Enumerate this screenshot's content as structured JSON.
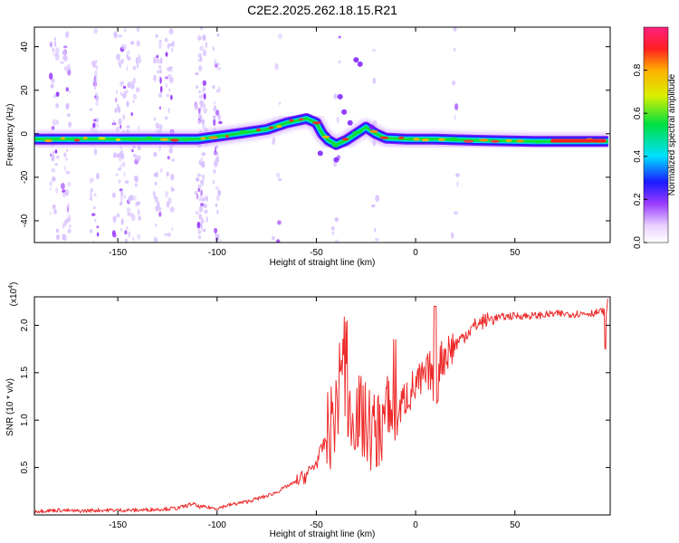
{
  "title": "C2E2.2025.262.18.15.R21",
  "colors": {
    "snr_line": "#ee2a2a",
    "background": "#ffffff",
    "axis": "#000000"
  },
  "chart_data": [
    {
      "type": "heatmap",
      "name": "spectrogram",
      "xlabel": "Height of straight line (km)",
      "ylabel": "Frequency (Hz)",
      "xlim": [
        -192,
        98
      ],
      "ylim": [
        -50,
        49
      ],
      "xticks": [
        -150,
        -100,
        -50,
        0,
        50
      ],
      "xtick_labels": [
        "-150",
        "-100",
        "-50",
        "0",
        "50"
      ],
      "yticks": [
        -40,
        -20,
        0,
        20,
        40
      ],
      "ytick_labels": [
        "-40",
        "-20",
        "0",
        "20",
        "40"
      ],
      "ridge": {
        "x": [
          -192,
          -150,
          -110,
          -90,
          -75,
          -65,
          -55,
          -50,
          -47,
          -44,
          -40,
          -35,
          -30,
          -25,
          -20,
          -15,
          -5,
          10,
          30,
          60,
          97
        ],
        "y": [
          -2.5,
          -2.5,
          -2.5,
          0,
          2,
          5,
          7,
          5,
          0,
          -3,
          -5,
          -3,
          0,
          3,
          0,
          -2,
          -2.5,
          -2.5,
          -3,
          -3.5,
          -3.5
        ]
      },
      "colorbar": {
        "label": "Normalized spectral amplitude",
        "range": [
          0,
          1
        ],
        "ticks": [
          0.0,
          0.2,
          0.4,
          0.6,
          0.8
        ],
        "tick_labels": [
          "0.0",
          "0.2",
          "0.4",
          "0.6",
          "0.8"
        ]
      }
    },
    {
      "type": "line",
      "name": "snr",
      "xlabel": "Height of straight line (km)",
      "ylabel": "SNR (10 * v/v)",
      "y_scale_label": "(x10",
      "y_scale_exp": "4",
      "y_scale_close": ")",
      "xlim": [
        -192,
        98
      ],
      "ylim": [
        0,
        2.3
      ],
      "xticks": [
        -150,
        -100,
        -50,
        0,
        50
      ],
      "xtick_labels": [
        "-150",
        "-100",
        "-50",
        "0",
        "50"
      ],
      "yticks": [
        0.5,
        1.0,
        1.5,
        2.0
      ],
      "ytick_labels": [
        "0.5",
        "1.0",
        "1.5",
        "2.0"
      ],
      "series": [
        {
          "name": "SNR",
          "x": [
            -192,
            -180,
            -170,
            -160,
            -150,
            -140,
            -130,
            -120,
            -115,
            -112,
            -110,
            -100,
            -95,
            -90,
            -85,
            -80,
            -75,
            -70,
            -65,
            -60,
            -55,
            -50,
            -45,
            -40,
            -37,
            -35,
            -33,
            -30,
            -25,
            -20,
            -15,
            -10,
            -5,
            0,
            5,
            8,
            10,
            12,
            15,
            20,
            25,
            30,
            35,
            40,
            50,
            60,
            70,
            80,
            90,
            95,
            97
          ],
          "y": [
            0.04,
            0.05,
            0.04,
            0.05,
            0.05,
            0.05,
            0.06,
            0.07,
            0.1,
            0.12,
            0.09,
            0.07,
            0.1,
            0.12,
            0.14,
            0.17,
            0.2,
            0.24,
            0.3,
            0.35,
            0.42,
            0.55,
            0.8,
            1.1,
            1.6,
            1.25,
            1.0,
            1.1,
            0.95,
            0.85,
            1.05,
            1.0,
            1.25,
            1.35,
            1.45,
            1.55,
            1.0,
            1.6,
            1.7,
            1.8,
            1.9,
            2.0,
            2.05,
            2.08,
            2.1,
            2.1,
            2.12,
            2.12,
            2.13,
            2.15,
            2.18
          ]
        }
      ]
    }
  ]
}
